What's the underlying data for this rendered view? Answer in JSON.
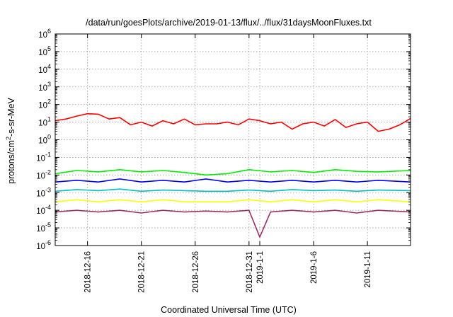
{
  "chart_data": {
    "type": "line",
    "title": "/data/run/goesPlots/archive/2019-01-13/flux/../flux/31daysMoonFluxes.txt",
    "xlabel": "Coordinated Universal Time (UTC)",
    "ylabel": {
      "prefix": "protons/cm",
      "sup": "2",
      "suffix": "-s-sr-MeV"
    },
    "y_scale": "log",
    "ylim": [
      1e-06,
      1000000.0
    ],
    "xlim": [
      "2018-12-13",
      "2019-01-15"
    ],
    "grid": true,
    "y_ticks": [
      {
        "value": 1e-06,
        "base": "10",
        "exp": "-6"
      },
      {
        "value": 1e-05,
        "base": "10",
        "exp": "-5"
      },
      {
        "value": 0.0001,
        "base": "10",
        "exp": "-4"
      },
      {
        "value": 0.001,
        "base": "10",
        "exp": "-3"
      },
      {
        "value": 0.01,
        "base": "10",
        "exp": "-2"
      },
      {
        "value": 0.1,
        "base": "10",
        "exp": "-1"
      },
      {
        "value": 1.0,
        "base": "10",
        "exp": "0"
      },
      {
        "value": 10.0,
        "base": "10",
        "exp": "1"
      },
      {
        "value": 100.0,
        "base": "10",
        "exp": "2"
      },
      {
        "value": 1000.0,
        "base": "10",
        "exp": "3"
      },
      {
        "value": 10000.0,
        "base": "10",
        "exp": "4"
      },
      {
        "value": 100000.0,
        "base": "10",
        "exp": "5"
      },
      {
        "value": 1000000.0,
        "base": "10",
        "exp": "6"
      }
    ],
    "x_ticks": [
      {
        "date": "2018-12-16",
        "label": "2018-12-16"
      },
      {
        "date": "2018-12-21",
        "label": "2018-12-21"
      },
      {
        "date": "2018-12-26",
        "label": "2018-12-26"
      },
      {
        "date": "2018-12-31",
        "label": "2018-12-31"
      },
      {
        "date": "2019-01-01",
        "label": "2019-1-1"
      },
      {
        "date": "2019-01-06",
        "label": "2019-1-6"
      },
      {
        "date": "2019-01-11",
        "label": "2019-1-11"
      }
    ],
    "series": [
      {
        "color": "#ff0000",
        "values": [
          [
            "2018-12-13",
            12
          ],
          [
            "2018-12-14",
            15
          ],
          [
            "2018-12-15",
            22
          ],
          [
            "2018-12-16",
            30
          ],
          [
            "2018-12-17",
            28
          ],
          [
            "2018-12-18",
            15
          ],
          [
            "2018-12-19",
            18
          ],
          [
            "2018-12-20",
            7
          ],
          [
            "2018-12-21",
            10
          ],
          [
            "2018-12-22",
            6
          ],
          [
            "2018-12-23",
            12
          ],
          [
            "2018-12-24",
            8
          ],
          [
            "2018-12-25",
            15
          ],
          [
            "2018-12-26",
            7
          ],
          [
            "2018-12-27",
            8
          ],
          [
            "2018-12-28",
            8
          ],
          [
            "2018-12-29",
            10
          ],
          [
            "2018-12-30",
            7
          ],
          [
            "2018-12-31",
            15
          ],
          [
            "2019-01-01",
            12
          ],
          [
            "2019-01-02",
            8
          ],
          [
            "2019-01-03",
            10
          ],
          [
            "2019-01-04",
            4
          ],
          [
            "2019-01-05",
            8
          ],
          [
            "2019-01-06",
            10
          ],
          [
            "2019-01-07",
            6
          ],
          [
            "2019-01-08",
            14
          ],
          [
            "2019-01-09",
            5
          ],
          [
            "2019-01-10",
            8
          ],
          [
            "2019-01-11",
            10
          ],
          [
            "2019-01-12",
            3
          ],
          [
            "2019-01-13",
            4
          ],
          [
            "2019-01-14",
            7
          ],
          [
            "2019-01-15",
            16
          ]
        ]
      },
      {
        "color": "#00ee00",
        "values": [
          [
            "2018-12-13",
            0.012
          ],
          [
            "2018-12-15",
            0.018
          ],
          [
            "2018-12-17",
            0.015
          ],
          [
            "2018-12-19",
            0.02
          ],
          [
            "2018-12-21",
            0.015
          ],
          [
            "2018-12-23",
            0.018
          ],
          [
            "2018-12-25",
            0.014
          ],
          [
            "2018-12-27",
            0.01
          ],
          [
            "2018-12-29",
            0.012
          ],
          [
            "2018-12-31",
            0.02
          ],
          [
            "2019-01-02",
            0.015
          ],
          [
            "2019-01-04",
            0.018
          ],
          [
            "2019-01-06",
            0.014
          ],
          [
            "2019-01-08",
            0.02
          ],
          [
            "2019-01-10",
            0.016
          ],
          [
            "2019-01-12",
            0.015
          ],
          [
            "2019-01-15",
            0.018
          ]
        ]
      },
      {
        "color": "#0000ff",
        "values": [
          [
            "2018-12-13",
            0.004
          ],
          [
            "2018-12-15",
            0.005
          ],
          [
            "2018-12-17",
            0.004
          ],
          [
            "2018-12-19",
            0.006
          ],
          [
            "2018-12-21",
            0.004
          ],
          [
            "2018-12-23",
            0.005
          ],
          [
            "2018-12-25",
            0.004
          ],
          [
            "2018-12-27",
            0.006
          ],
          [
            "2018-12-29",
            0.004
          ],
          [
            "2018-12-31",
            0.005
          ],
          [
            "2019-01-02",
            0.004
          ],
          [
            "2019-01-04",
            0.005
          ],
          [
            "2019-01-06",
            0.004
          ],
          [
            "2019-01-08",
            0.005
          ],
          [
            "2019-01-10",
            0.004
          ],
          [
            "2019-01-12",
            0.005
          ],
          [
            "2019-01-15",
            0.004
          ]
        ]
      },
      {
        "color": "#00c0c0",
        "values": [
          [
            "2018-12-13",
            0.0012
          ],
          [
            "2018-12-15",
            0.0015
          ],
          [
            "2018-12-17",
            0.0013
          ],
          [
            "2018-12-19",
            0.0016
          ],
          [
            "2018-12-21",
            0.0012
          ],
          [
            "2018-12-23",
            0.0014
          ],
          [
            "2018-12-25",
            0.0013
          ],
          [
            "2018-12-27",
            0.0012
          ],
          [
            "2018-12-29",
            0.0012
          ],
          [
            "2018-12-31",
            0.0014
          ],
          [
            "2019-01-02",
            0.0012
          ],
          [
            "2019-01-04",
            0.0015
          ],
          [
            "2019-01-06",
            0.0013
          ],
          [
            "2019-01-08",
            0.0014
          ],
          [
            "2019-01-10",
            0.0012
          ],
          [
            "2019-01-12",
            0.0014
          ],
          [
            "2019-01-15",
            0.0013
          ]
        ]
      },
      {
        "color": "#ffff00",
        "values": [
          [
            "2018-12-13",
            0.0003
          ],
          [
            "2018-12-15",
            0.0004
          ],
          [
            "2018-12-17",
            0.0003
          ],
          [
            "2018-12-19",
            0.0004
          ],
          [
            "2018-12-21",
            0.0003
          ],
          [
            "2018-12-23",
            0.0004
          ],
          [
            "2018-12-25",
            0.0003
          ],
          [
            "2018-12-27",
            0.0003
          ],
          [
            "2018-12-29",
            0.0003
          ],
          [
            "2018-12-31",
            0.0004
          ],
          [
            "2019-01-02",
            0.0003
          ],
          [
            "2019-01-04",
            0.0004
          ],
          [
            "2019-01-06",
            0.0003
          ],
          [
            "2019-01-08",
            0.0004
          ],
          [
            "2019-01-10",
            0.0003
          ],
          [
            "2019-01-12",
            0.0004
          ],
          [
            "2019-01-15",
            0.0003
          ]
        ]
      },
      {
        "color": "#993366",
        "values": [
          [
            "2018-12-13",
            8e-05
          ],
          [
            "2018-12-15",
            0.0001
          ],
          [
            "2018-12-17",
            8e-05
          ],
          [
            "2018-12-19",
            0.0001
          ],
          [
            "2018-12-21",
            7e-05
          ],
          [
            "2018-12-23",
            0.0001
          ],
          [
            "2018-12-25",
            8e-05
          ],
          [
            "2018-12-27",
            9e-05
          ],
          [
            "2018-12-29",
            8e-05
          ],
          [
            "2018-12-31",
            0.0001
          ],
          [
            "2019-01-01",
            3e-06
          ],
          [
            "2019-01-02",
            8e-05
          ],
          [
            "2019-01-04",
            0.0001
          ],
          [
            "2019-01-06",
            8e-05
          ],
          [
            "2019-01-08",
            0.0001
          ],
          [
            "2019-01-10",
            7e-05
          ],
          [
            "2019-01-12",
            0.0001
          ],
          [
            "2019-01-15",
            8e-05
          ]
        ]
      }
    ]
  }
}
